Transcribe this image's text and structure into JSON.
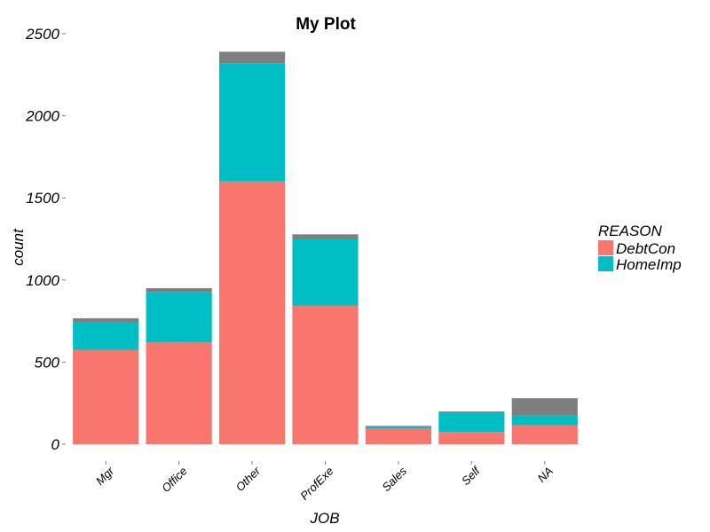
{
  "chart_data": {
    "type": "bar",
    "stacked": true,
    "title": "My Plot",
    "xlabel": "JOB",
    "ylabel": "count",
    "categories": [
      "Mgr",
      "Office",
      "Other",
      "ProfExe",
      "Sales",
      "Self",
      "NA"
    ],
    "series": [
      {
        "name": "DebtCon",
        "color": "#F8766D",
        "values": [
          575,
          620,
          1600,
          845,
          95,
          75,
          115
        ]
      },
      {
        "name": "HomeImp",
        "color": "#00BFC4",
        "values": [
          170,
          305,
          720,
          405,
          12,
          120,
          60
        ]
      },
      {
        "name": "",
        "color": "#7F7F7F",
        "values": [
          22,
          25,
          70,
          28,
          5,
          5,
          105
        ]
      }
    ],
    "ylim": [
      0,
      2500
    ],
    "yticks": [
      0,
      500,
      1000,
      1500,
      2000,
      2500
    ],
    "legend": {
      "title": "REASON",
      "position": "right"
    },
    "grid": false,
    "background": "#ffffff"
  }
}
